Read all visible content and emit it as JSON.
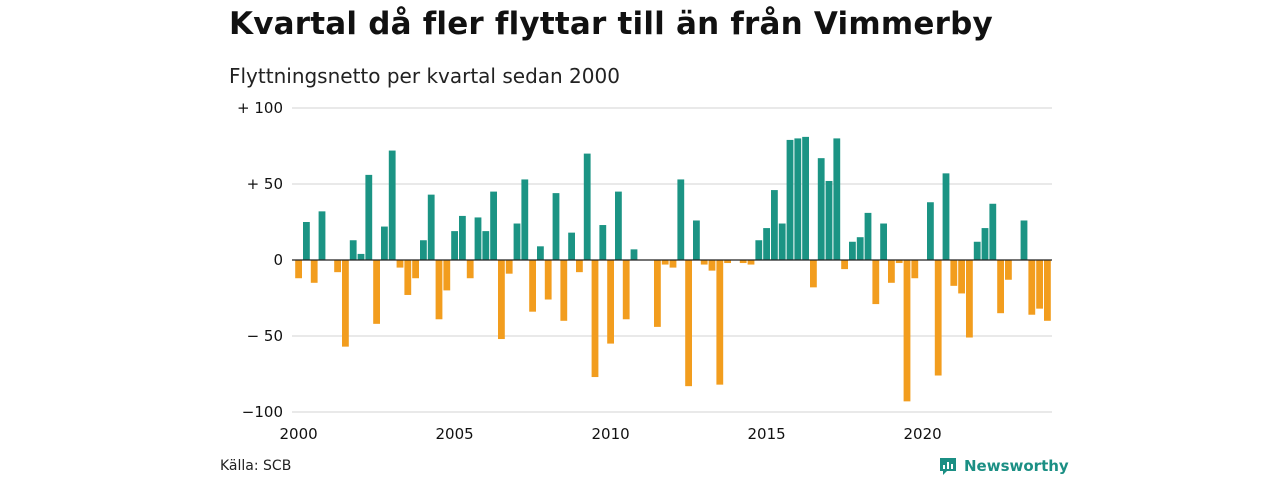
{
  "title": "Kvartal då fler flyttar till än från Vimmerby",
  "subtitle": "Flyttningsnetto per kvartal sedan 2000",
  "source": "Källa: SCB",
  "brand": "Newsworthy",
  "colors": {
    "positive": "#1b9484",
    "negative": "#f29d1e",
    "grid": "#dcdcdc",
    "zero": "#222222"
  },
  "chart_data": {
    "type": "bar",
    "ylim": [
      -100,
      100
    ],
    "yticks": [
      {
        "value": 100,
        "label": "+ 100"
      },
      {
        "value": 50,
        "label": "+  50"
      },
      {
        "value": 0,
        "label": "0"
      },
      {
        "value": -50,
        "label": "− 50"
      },
      {
        "value": -100,
        "label": "−100"
      }
    ],
    "xticks": [
      "2000",
      "2005",
      "2010",
      "2015",
      "2020"
    ],
    "start_year": 2000,
    "values": [
      -12,
      25,
      -15,
      32,
      0,
      -8,
      -57,
      13,
      4,
      56,
      -42,
      22,
      72,
      -5,
      -23,
      -12,
      13,
      43,
      -39,
      -20,
      19,
      29,
      -12,
      28,
      19,
      45,
      -52,
      -9,
      24,
      53,
      -34,
      9,
      -26,
      44,
      -40,
      18,
      -8,
      70,
      -77,
      23,
      -55,
      45,
      -39,
      7,
      0,
      0,
      -44,
      -3,
      -5,
      53,
      -83,
      26,
      -3,
      -7,
      -82,
      -2,
      0,
      -2,
      -3,
      13,
      21,
      46,
      24,
      79,
      80,
      81,
      -18,
      67,
      52,
      80,
      -6,
      12,
      15,
      31,
      -29,
      24,
      -15,
      -2,
      -93,
      -12,
      0,
      38,
      -76,
      57,
      -17,
      -22,
      -51,
      12,
      21,
      37,
      -35,
      -13,
      0,
      26,
      -36,
      -32,
      -40
    ]
  }
}
